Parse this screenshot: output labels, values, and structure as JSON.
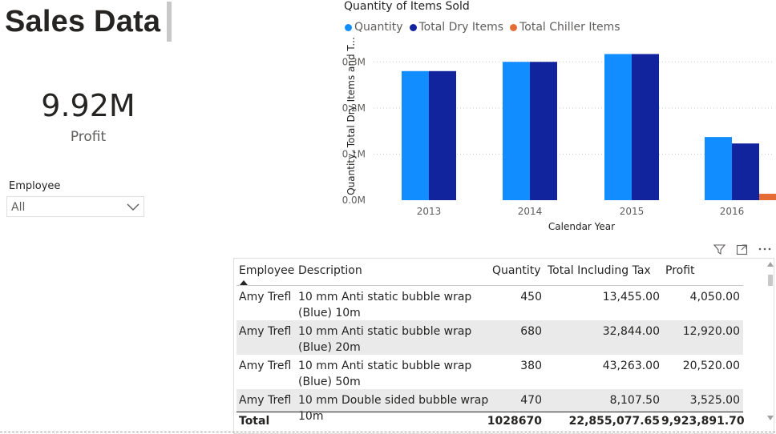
{
  "report": {
    "title": "Sales Data",
    "kpi": {
      "value": "9.92M",
      "label": "Profit"
    },
    "slicer": {
      "label": "Employee",
      "value": "All"
    }
  },
  "chart": {
    "title": "Quantity of Items Sold",
    "legend": [
      {
        "name": "Quantity",
        "color": "#118dff"
      },
      {
        "name": "Total Dry Items",
        "color": "#12239e"
      },
      {
        "name": "Total Chiller Items",
        "color": "#e66c37"
      }
    ]
  },
  "chart_data": {
    "type": "bar",
    "title": "Quantity of Items Sold",
    "xlabel": "Calendar Year",
    "ylabel": "Quantity, Total Dry Items and T...",
    "categories": [
      "2013",
      "2014",
      "2015",
      "2016"
    ],
    "series": [
      {
        "name": "Quantity",
        "values": [
          0.28,
          0.3,
          0.317,
          0.137
        ],
        "color": "#118dff"
      },
      {
        "name": "Total Dry Items",
        "values": [
          0.28,
          0.3,
          0.317,
          0.123
        ],
        "color": "#12239e"
      },
      {
        "name": "Total Chiller Items",
        "values": [
          0,
          0,
          0,
          0.014
        ],
        "color": "#e66c37"
      }
    ],
    "ylim": [
      0,
      0.33
    ],
    "yticks": [
      "0.0M",
      "0.1M",
      "0.2M",
      "0.3M"
    ],
    "grid": true,
    "legend_position": "top-left"
  },
  "table": {
    "headers": {
      "employee": "Employee",
      "description": "Description",
      "quantity": "Quantity",
      "total_tax": "Total Including Tax",
      "profit": "Profit"
    },
    "rows": [
      {
        "employee": "Amy Trefl",
        "desc1": "10 mm Anti static bubble wrap",
        "desc2": "(Blue) 10m",
        "quantity": "450",
        "total_tax": "13,455.00",
        "profit": "4,050.00"
      },
      {
        "employee": "Amy Trefl",
        "desc1": "10 mm Anti static bubble wrap",
        "desc2": "(Blue) 20m",
        "quantity": "680",
        "total_tax": "32,844.00",
        "profit": "12,920.00"
      },
      {
        "employee": "Amy Trefl",
        "desc1": "10 mm Anti static bubble wrap",
        "desc2": "(Blue) 50m",
        "quantity": "380",
        "total_tax": "43,263.00",
        "profit": "20,520.00"
      },
      {
        "employee": "Amy Trefl",
        "desc1": "10 mm Double sided bubble wrap",
        "desc2": "10m",
        "quantity": "470",
        "total_tax": "8,107.50",
        "profit": "3,525.00"
      }
    ],
    "total": {
      "label": "Total",
      "quantity": "1028670",
      "total_tax": "22,855,077.65",
      "profit": "9,923,891.70"
    }
  },
  "icons": [
    "filter-icon",
    "focus-mode-icon",
    "more-options-icon",
    "chevron-down-icon",
    "sort-ascending-icon"
  ]
}
